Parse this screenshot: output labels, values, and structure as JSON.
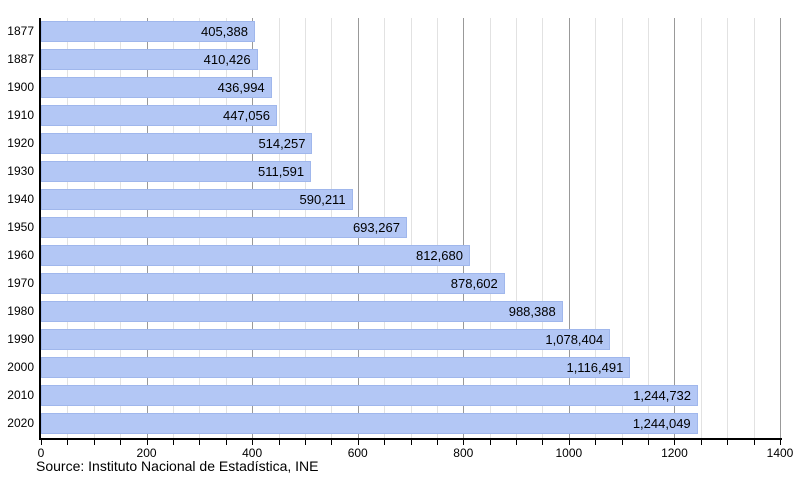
{
  "chart_data": {
    "type": "bar",
    "orientation": "horizontal",
    "title": "",
    "categories": [
      "1877",
      "1887",
      "1900",
      "1910",
      "1920",
      "1930",
      "1940",
      "1950",
      "1960",
      "1970",
      "1980",
      "1990",
      "2000",
      "2010",
      "2020"
    ],
    "values": [
      405388,
      410426,
      436994,
      447056,
      514257,
      511591,
      590211,
      693267,
      812680,
      878602,
      988388,
      1078404,
      1116491,
      1244732,
      1244049
    ],
    "value_labels": [
      "405,388",
      "410,426",
      "436,994",
      "447,056",
      "514,257",
      "511,591",
      "590,211",
      "693,267",
      "812,680",
      "878,602",
      "988,388",
      "1,078,404",
      "1,116,491",
      "1,244,732",
      "1,244,049"
    ],
    "x_axis": {
      "min": 0,
      "max": 1400,
      "scale_of_values": 1000,
      "major_tick_step": 200,
      "minor_tick_step": 50,
      "tick_labels": [
        "0",
        "200",
        "400",
        "600",
        "800",
        "1000",
        "1200",
        "1400"
      ]
    },
    "ylabel": "",
    "xlabel": "",
    "grid": "vertical, minor every 50 and major every 200",
    "legend": "none"
  },
  "footer": {
    "source": "Source: Instituto Nacional de Estadística, INE"
  },
  "colors": {
    "background": "#ffffff",
    "bar_fill": "#b3c7f5",
    "bar_border": "#a0b7ec",
    "grid_minor": "#e2e2e2",
    "grid_major": "#999999",
    "axis": "#000000",
    "text": "#000000"
  }
}
